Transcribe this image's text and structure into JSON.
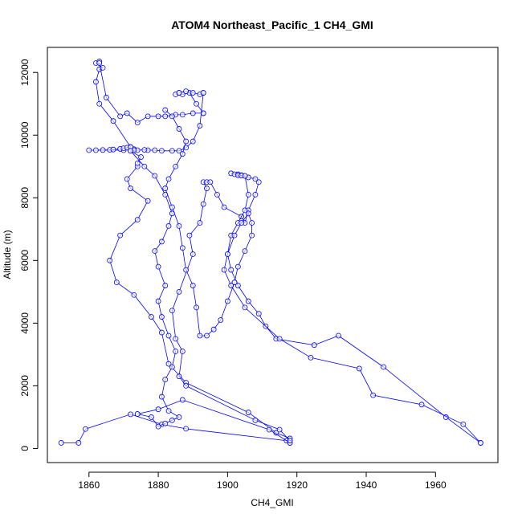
{
  "chart_data": {
    "type": "line",
    "title": "ATOM4 Northeast_Pacific_1 CH4_GMI",
    "xlabel": "CH4_GMI",
    "ylabel": "Altitude (m)",
    "xlim": [
      1848,
      1978
    ],
    "ylim": [
      -450,
      12800
    ],
    "xticks": [
      1860,
      1880,
      1900,
      1920,
      1940,
      1960
    ],
    "yticks": [
      0,
      2000,
      4000,
      6000,
      8000,
      10000,
      12000
    ],
    "xtick_labels": [
      "1860",
      "1880",
      "1900",
      "1920",
      "1940",
      "1960"
    ],
    "ytick_labels": [
      "0",
      "2000",
      "4000",
      "6000",
      "8000",
      "10000",
      "12000"
    ],
    "grid": false,
    "legend": "none",
    "series_color": "#0000ff",
    "series": [
      {
        "x": [
          1852,
          1857,
          1859,
          1872,
          1881,
          1888,
          1917,
          1918
        ],
        "y": [
          180,
          180,
          620,
          1090,
          770,
          630,
          250,
          180
        ]
      },
      {
        "x": [
          1918,
          1914,
          1906,
          1888,
          1883,
          1881,
          1878,
          1873,
          1868,
          1866,
          1869,
          1874,
          1877,
          1872,
          1871,
          1874
        ],
        "y": [
          320,
          500,
          1150,
          2100,
          2700,
          3700,
          4200,
          4900,
          5300,
          6000,
          6800,
          7300,
          7900,
          8300,
          8600,
          9000
        ]
      },
      {
        "x": [
          1874,
          1875,
          1872,
          1873,
          1870,
          1860,
          1862,
          1864,
          1866,
          1867,
          1869,
          1870,
          1871,
          1872
        ],
        "y": [
          9100,
          9300,
          9500,
          9550,
          9520,
          9520,
          9520,
          9525,
          9530,
          9540,
          9560,
          9580,
          9600,
          9620
        ]
      },
      {
        "x": [
          1872,
          1867,
          1863,
          1862,
          1863,
          1864,
          1862,
          1863
        ],
        "y": [
          9620,
          10450,
          11000,
          11700,
          12100,
          12150,
          12300,
          12350
        ]
      },
      {
        "x": [
          1863,
          1865,
          1869,
          1871,
          1874,
          1877,
          1880,
          1882,
          1885,
          1887,
          1890,
          1893
        ],
        "y": [
          12300,
          11200,
          10600,
          10700,
          10400,
          10600,
          10600,
          10600,
          10650,
          10650,
          10700,
          10700
        ]
      },
      {
        "x": [
          1893,
          1891,
          1889,
          1887,
          1886,
          1885,
          1886,
          1888,
          1890,
          1892,
          1893
        ],
        "y": [
          10700,
          11000,
          11350,
          11300,
          11350,
          11300,
          11350,
          11400,
          11350,
          11300,
          11350
        ]
      },
      {
        "x": [
          1893,
          1892,
          1890,
          1888,
          1886,
          1884,
          1881,
          1879,
          1877,
          1876,
          1874,
          1873,
          1872
        ],
        "y": [
          11350,
          10300,
          9800,
          9600,
          9500,
          9500,
          9500,
          9520,
          9520,
          9530,
          9520,
          9520,
          9500
        ]
      },
      {
        "x": [
          1872,
          1876,
          1879,
          1882,
          1884,
          1883,
          1881,
          1879,
          1880,
          1882,
          1880,
          1881,
          1883,
          1885,
          1884,
          1882,
          1881,
          1883,
          1886,
          1884,
          1882,
          1880,
          1878,
          1874
        ],
        "y": [
          9500,
          9000,
          8700,
          8100,
          7500,
          7100,
          6600,
          6300,
          5800,
          5200,
          4700,
          4200,
          3600,
          3100,
          2600,
          2200,
          1650,
          1200,
          1000,
          900,
          800,
          700,
          1000,
          1100
        ]
      },
      {
        "x": [
          1874,
          1880,
          1887,
          1912,
          1918
        ],
        "y": [
          1100,
          1250,
          1550,
          600,
          180
        ]
      },
      {
        "x": [
          1918,
          1915,
          1908,
          1888,
          1886,
          1887,
          1885,
          1884,
          1886,
          1890,
          1889,
          1892,
          1893,
          1894,
          1893,
          1894,
          1895,
          1897,
          1899,
          1904,
          1905,
          1906,
          1908,
          1909,
          1908,
          1906,
          1905,
          1904,
          1903,
          1901
        ],
        "y": [
          250,
          600,
          900,
          2000,
          2300,
          3100,
          3500,
          4400,
          5000,
          6200,
          6800,
          7200,
          7800,
          8300,
          8500,
          8500,
          8500,
          8100,
          7700,
          7400,
          7200,
          7600,
          8100,
          8500,
          8600,
          8650,
          8700,
          8720,
          8750,
          8780
        ]
      },
      {
        "x": [
          1901,
          1902,
          1903,
          1904,
          1905,
          1906,
          1905,
          1903,
          1901,
          1900,
          1901,
          1903,
          1906,
          1909,
          1911,
          1914,
          1925,
          1932,
          1945,
          1963,
          1973
        ],
        "y": [
          8780,
          8750,
          8720,
          8710,
          8700,
          8100,
          7600,
          7200,
          6800,
          6200,
          5700,
          5200,
          4700,
          4300,
          3900,
          3500,
          3300,
          3600,
          2600,
          1000,
          180
        ]
      },
      {
        "x": [
          1973,
          1968,
          1956,
          1942,
          1938,
          1924,
          1915,
          1905,
          1901,
          1899,
          1900,
          1902,
          1904,
          1906,
          1907,
          1907,
          1905,
          1903,
          1902
        ],
        "y": [
          180,
          770,
          1400,
          1700,
          2550,
          2900,
          3500,
          4500,
          5200,
          5700,
          6200,
          6800,
          7200,
          7500,
          7200,
          6800,
          6300,
          5800,
          5300
        ]
      },
      {
        "x": [
          1902,
          1900,
          1898,
          1896,
          1894,
          1892,
          1891,
          1890,
          1888,
          1887,
          1886,
          1884,
          1882,
          1883,
          1885,
          1887,
          1888,
          1886,
          1884,
          1882
        ],
        "y": [
          5300,
          4700,
          4100,
          3800,
          3600,
          3600,
          4500,
          5200,
          5700,
          6400,
          7100,
          7700,
          8300,
          8600,
          9000,
          9400,
          9800,
          10200,
          10600,
          10800
        ]
      }
    ]
  }
}
